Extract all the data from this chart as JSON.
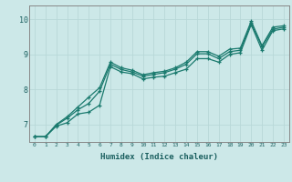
{
  "title": "",
  "xlabel": "Humidex (Indice chaleur)",
  "bg_color": "#cce8e8",
  "plot_bg_color": "#cce8e8",
  "line_color": "#1a7a6e",
  "grid_color_v": "#b8d8d8",
  "grid_color_h": "#b8d8d8",
  "spine_color": "#888888",
  "xlabel_color": "#1a5f5f",
  "tick_color": "#1a5f5f",
  "xlim": [
    -0.5,
    23.5
  ],
  "ylim": [
    6.5,
    10.4
  ],
  "xticks": [
    0,
    1,
    2,
    3,
    4,
    5,
    6,
    7,
    8,
    9,
    10,
    11,
    12,
    13,
    14,
    15,
    16,
    17,
    18,
    19,
    20,
    21,
    22,
    23
  ],
  "yticks": [
    7,
    8,
    9,
    10
  ],
  "ytick_labels": [
    "7",
    "8",
    "9",
    "10"
  ],
  "lines": [
    [
      6.65,
      6.65,
      6.95,
      7.05,
      7.3,
      7.35,
      7.55,
      8.65,
      8.5,
      8.45,
      8.3,
      8.35,
      8.38,
      8.48,
      8.58,
      8.88,
      8.88,
      8.78,
      9.0,
      9.05,
      9.85,
      9.12,
      9.68,
      9.73
    ],
    [
      6.65,
      6.65,
      6.98,
      7.18,
      7.42,
      7.6,
      7.95,
      8.72,
      8.57,
      8.5,
      8.38,
      8.43,
      8.48,
      8.58,
      8.72,
      9.02,
      9.02,
      8.88,
      9.08,
      9.12,
      9.9,
      9.22,
      9.72,
      9.78
    ],
    [
      6.65,
      6.65,
      7.0,
      7.22,
      7.5,
      7.78,
      8.05,
      8.78,
      8.62,
      8.55,
      8.42,
      8.48,
      8.52,
      8.62,
      8.78,
      9.08,
      9.08,
      8.95,
      9.15,
      9.18,
      9.95,
      9.25,
      9.78,
      9.82
    ]
  ]
}
